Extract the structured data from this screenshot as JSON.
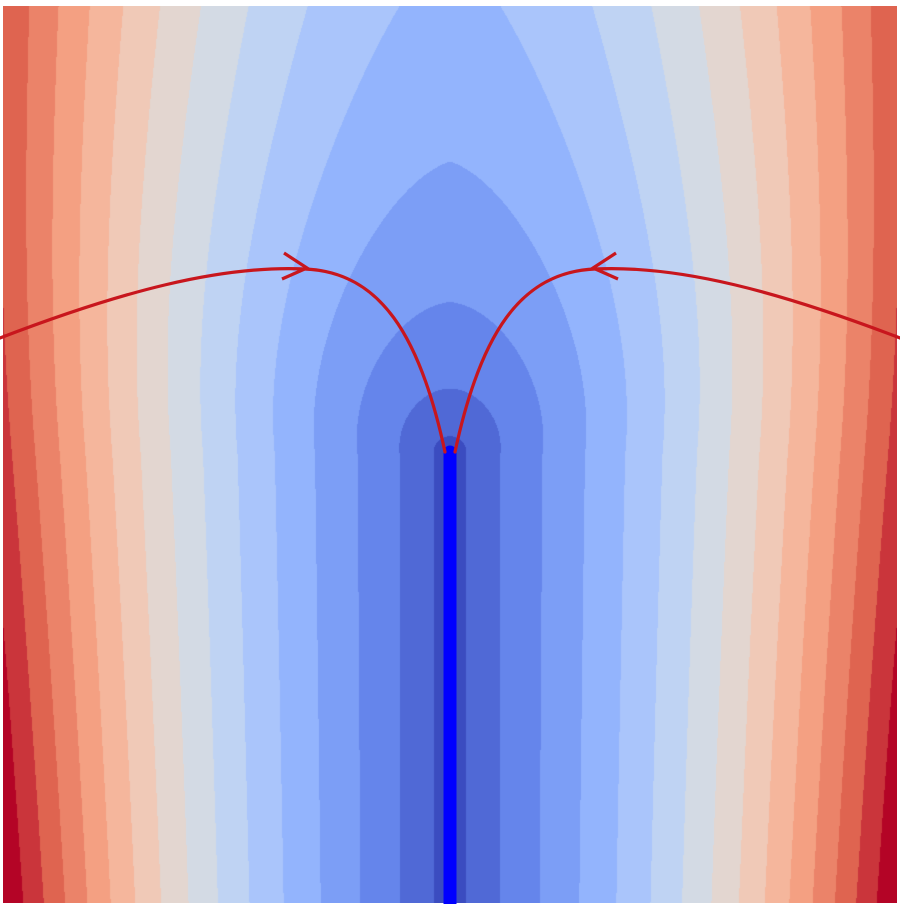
{
  "chart_data": {
    "type": "heatmap",
    "subtype": "filled-contour",
    "title": "",
    "xlabel": "",
    "ylabel": "",
    "axes_visible": false,
    "grid": false,
    "legend": "none",
    "colormap": "coolwarm",
    "contour_levels": 16,
    "colors": {
      "low": "#3b4cc0",
      "mid": "#dddddd",
      "high": "#b40426",
      "branch_cut": "#0000ff",
      "trajectory": "#c8161d"
    },
    "overlays": [
      {
        "kind": "branch-cut",
        "description_shown": false,
        "color": "#0000ff"
      },
      {
        "kind": "trajectory",
        "color": "#c8161d",
        "arrows": 2
      }
    ]
  }
}
